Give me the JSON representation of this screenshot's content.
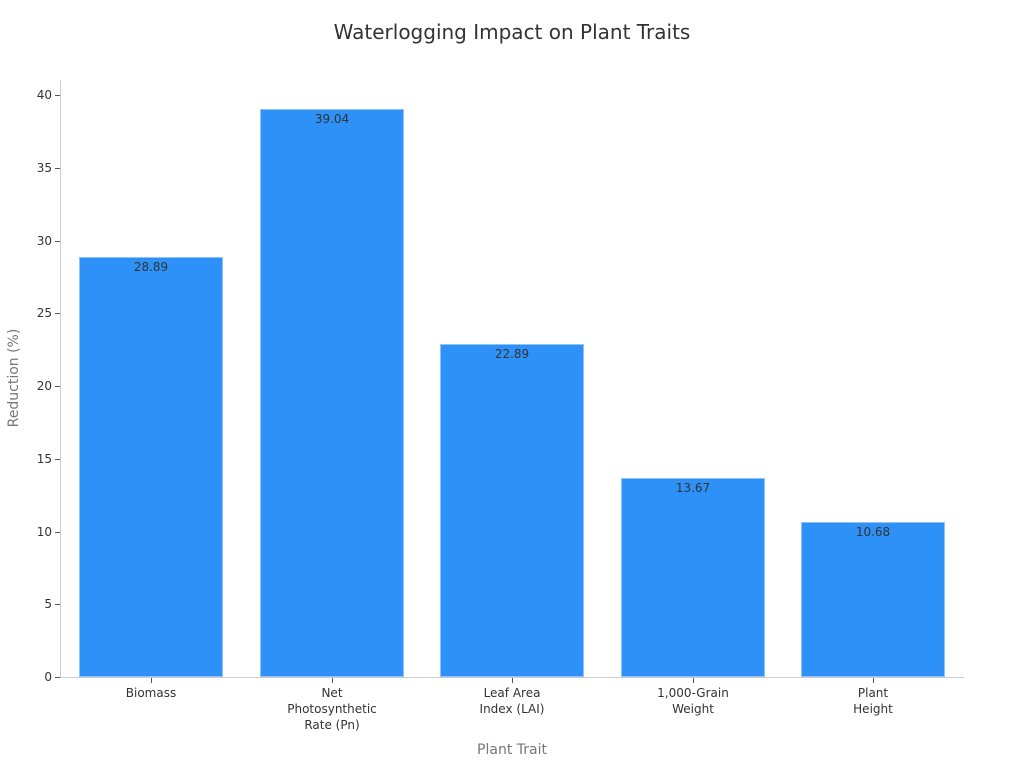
{
  "chart_data": {
    "type": "bar",
    "title": "Waterlogging Impact on Plant Traits",
    "xlabel": "Plant Trait",
    "ylabel": "Reduction (%)",
    "categories": [
      "Biomass",
      "Net Photosynthetic Rate (Pn)",
      "Leaf Area Index (LAI)",
      "1,000-Grain Weight",
      "Plant Height"
    ],
    "category_labels_wrapped": [
      "Biomass",
      "Net\nPhotosynthetic\nRate (Pn)",
      "Leaf Area\nIndex (LAI)",
      "1,000-Grain\nWeight",
      "Plant\nHeight"
    ],
    "values": [
      28.89,
      39.04,
      22.89,
      13.67,
      10.68
    ],
    "value_labels": [
      "28.89",
      "39.04",
      "22.89",
      "13.67",
      "10.68"
    ],
    "ylim": [
      0,
      40
    ],
    "yticks": [
      0,
      5,
      10,
      15,
      20,
      25,
      30,
      35,
      40
    ],
    "grid": false,
    "legend": null,
    "bar_color": "#2e91f7"
  }
}
